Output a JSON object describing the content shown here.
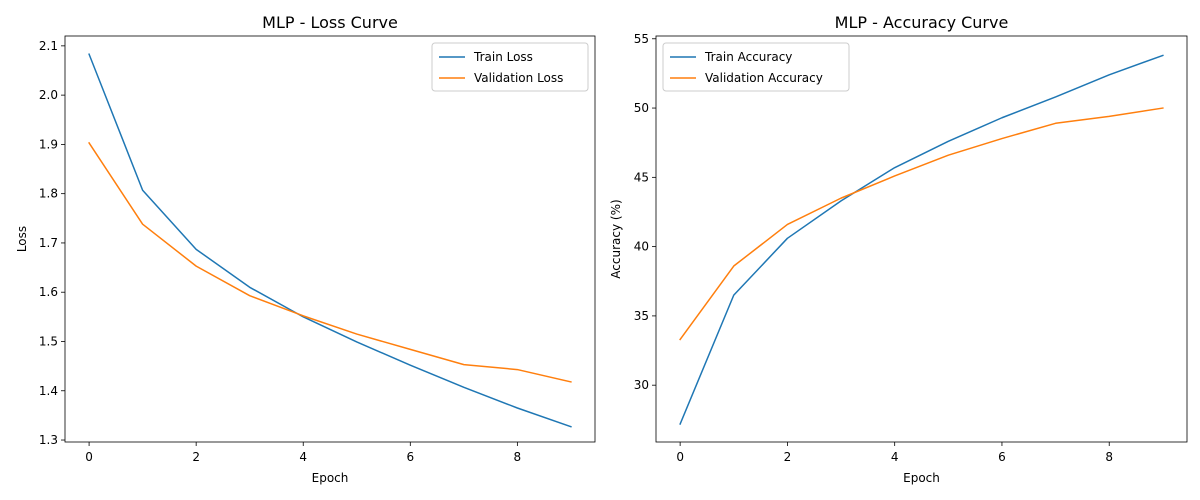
{
  "colors": {
    "train": "#1f77b4",
    "validation": "#ff7f0e"
  },
  "chart_data": [
    {
      "type": "line",
      "title": "MLP - Loss Curve",
      "xlabel": "Epoch",
      "ylabel": "Loss",
      "x": [
        0,
        1,
        2,
        3,
        4,
        5,
        6,
        7,
        8,
        9
      ],
      "xlim": [
        -0.45,
        9.45
      ],
      "ylim": [
        1.296,
        2.12
      ],
      "xticks": [
        0,
        2,
        4,
        6,
        8
      ],
      "yticks": [
        1.3,
        1.4,
        1.5,
        1.6,
        1.7,
        1.8,
        1.9,
        2.0,
        2.1
      ],
      "ytick_labels": [
        "1.3",
        "1.4",
        "1.5",
        "1.6",
        "1.7",
        "1.8",
        "1.9",
        "2.0",
        "2.1"
      ],
      "legend_position": "top-right",
      "grid": false,
      "series": [
        {
          "name": "Train Loss",
          "color": "#1f77b4",
          "values": [
            2.083,
            1.807,
            1.687,
            1.61,
            1.55,
            1.499,
            1.452,
            1.407,
            1.365,
            1.327
          ]
        },
        {
          "name": "Validation Loss",
          "color": "#ff7f0e",
          "values": [
            1.903,
            1.738,
            1.653,
            1.593,
            1.552,
            1.515,
            1.484,
            1.453,
            1.443,
            1.418
          ]
        }
      ]
    },
    {
      "type": "line",
      "title": "MLP - Accuracy Curve",
      "xlabel": "Epoch",
      "ylabel": "Accuracy (%)",
      "x": [
        0,
        1,
        2,
        3,
        4,
        5,
        6,
        7,
        8,
        9
      ],
      "xlim": [
        -0.45,
        9.45
      ],
      "ylim": [
        25.9,
        55.2
      ],
      "xticks": [
        0,
        2,
        4,
        6,
        8
      ],
      "yticks": [
        30,
        35,
        40,
        45,
        50,
        55
      ],
      "ytick_labels": [
        "30",
        "35",
        "40",
        "45",
        "50",
        "55"
      ],
      "legend_position": "top-left",
      "grid": false,
      "series": [
        {
          "name": "Train Accuracy",
          "color": "#1f77b4",
          "values": [
            27.2,
            36.5,
            40.6,
            43.3,
            45.7,
            47.6,
            49.3,
            50.8,
            52.4,
            53.8
          ]
        },
        {
          "name": "Validation Accuracy",
          "color": "#ff7f0e",
          "values": [
            33.3,
            38.6,
            41.6,
            43.5,
            45.1,
            46.6,
            47.8,
            48.9,
            49.4,
            50.0
          ]
        }
      ]
    }
  ]
}
